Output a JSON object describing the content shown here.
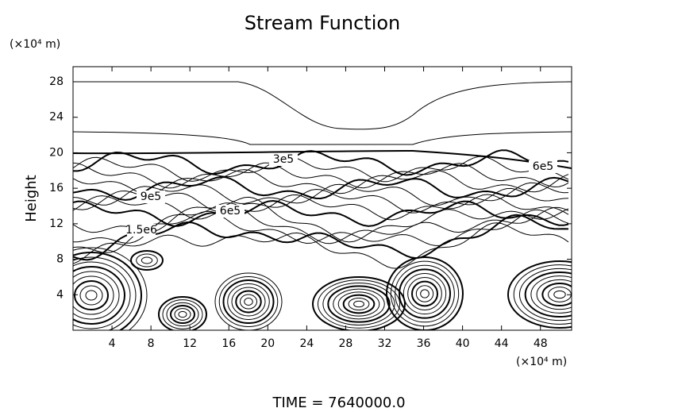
{
  "chart_data": {
    "type": "contour",
    "title": "Stream Function",
    "ylabel": "Height",
    "y_unit": "(×10⁴ m)",
    "x_unit": "(×10⁴ m)",
    "footer": "TIME = 7640000.0",
    "xlim": [
      0,
      51.2
    ],
    "ylim": [
      0,
      29.7
    ],
    "xticks": [
      4,
      8,
      12,
      16,
      20,
      24,
      28,
      32,
      36,
      40,
      44,
      48
    ],
    "yticks": [
      4,
      8,
      12,
      16,
      20,
      24,
      28
    ],
    "contour_labels": [
      "3e5",
      "6e5",
      "9e5",
      "6e5",
      "1.5e6"
    ]
  }
}
